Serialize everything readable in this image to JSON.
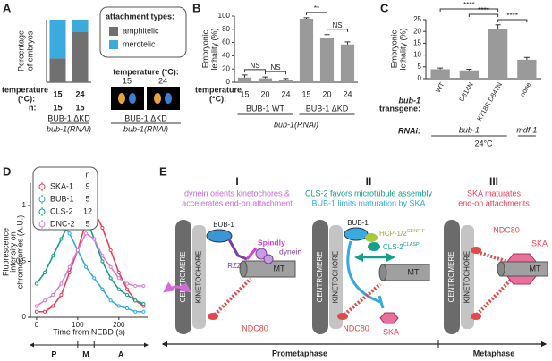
{
  "panel_labels": [
    "A",
    "B",
    "C",
    "D",
    "E"
  ],
  "chart_data": [
    {
      "type": "stacked_bar",
      "y_label": [
        "Percentage",
        "of embryos"
      ],
      "categories": [
        "15",
        "24"
      ],
      "row_labels": [
        "temperature",
        "(°C):",
        "n:"
      ],
      "n": [
        15,
        15
      ],
      "strain": "BUB-1 ΔKD",
      "rnai": "bub-1(RNAi)",
      "ylim": [
        0,
        100
      ],
      "series": [
        {
          "name": "amphitelic",
          "color": "#707070",
          "values": [
            38,
            80
          ]
        },
        {
          "name": "merotelic",
          "color": "#3aaadf",
          "values": [
            62,
            20
          ]
        }
      ],
      "legend_title": "attachment types:",
      "inset": {
        "title": "temperature (°C):",
        "labels": [
          "15",
          "24"
        ],
        "strain": "BUB-1 ΔKD",
        "rnai": "bub-1(RNAi)"
      }
    },
    {
      "type": "bar",
      "y_label": [
        "Embryonic",
        "lethality (%)"
      ],
      "categories": [
        "15",
        "20",
        "24",
        "15",
        "20",
        "24"
      ],
      "row_labels": [
        "temperature",
        "(°C):"
      ],
      "groups": [
        "BUB-1 WT",
        "BUB-1 ΔKD"
      ],
      "rnai": "bub-1(RNAi)",
      "values": [
        7,
        6,
        4,
        96,
        67,
        57
      ],
      "errors": [
        4,
        2,
        1.5,
        1.5,
        5,
        4
      ],
      "color": "#9a9a9a",
      "ylim": [
        0,
        100
      ],
      "yticks": [
        0,
        20,
        40,
        60,
        80,
        100
      ],
      "annotations": [
        "NS",
        "NS",
        "**",
        "NS"
      ]
    },
    {
      "type": "bar",
      "y_label": [
        "Embryonic",
        "lethality (%)"
      ],
      "categories": [
        "WT",
        "D814N",
        "K718R D847N",
        "none"
      ],
      "row_labels": [
        "bub-1",
        "transgene:",
        "RNAi:"
      ],
      "rnai": [
        "bub-1",
        "mdf-1"
      ],
      "condition": "24°C",
      "values": [
        4,
        3.5,
        21,
        8
      ],
      "errors": [
        0.5,
        0.5,
        1.8,
        1
      ],
      "color": "#9a9a9a",
      "ylim": [
        0,
        25
      ],
      "yticks": [
        0,
        5,
        10,
        15,
        20,
        25
      ],
      "annotations": [
        "****",
        "****",
        "****"
      ]
    },
    {
      "type": "line",
      "y_label": [
        "Fluorescence",
        "intensity on",
        "chromosomes (A.U.)"
      ],
      "x_label": "Time from NEBD (s)",
      "legend_header": "n",
      "phases": [
        "P",
        "M",
        "A"
      ],
      "x": [
        0,
        20,
        40,
        60,
        80,
        100,
        120,
        140,
        160,
        180,
        200,
        220,
        240,
        260
      ],
      "xlim": [
        -15,
        270
      ],
      "xticks": [
        0,
        100,
        200
      ],
      "ylim": [
        0,
        1.2
      ],
      "yticks": [
        0,
        0.5,
        1
      ],
      "series": [
        {
          "name": "SKA-1",
          "color": "#e8405a",
          "n": 9,
          "values": [
            0.05,
            0.05,
            0.1,
            0.2,
            0.4,
            0.6,
            0.85,
            0.95,
            0.8,
            0.6,
            0.4,
            0.25,
            0.15,
            0.1
          ]
        },
        {
          "name": "BUB-1",
          "color": "#36a9e1",
          "n": 5,
          "values": [
            0.9,
            1,
            0.95,
            0.85,
            0.75,
            0.6,
            0.45,
            0.35,
            0.25,
            0.15,
            0.1,
            0.08,
            0.05,
            0.05
          ]
        },
        {
          "name": "CLS-2",
          "color": "#15a08a",
          "n": 12,
          "values": [
            0.3,
            0.4,
            0.55,
            0.7,
            0.85,
            0.95,
            0.9,
            0.7,
            0.5,
            0.35,
            0.25,
            0.2,
            0.15,
            0.12
          ]
        },
        {
          "name": "DNC-2",
          "color": "#d77fd6",
          "n": 5,
          "values": [
            0.1,
            0.15,
            0.2,
            0.3,
            0.45,
            0.6,
            0.75,
            0.7,
            0.55,
            0.45,
            0.35,
            0.3,
            0.28,
            0.28
          ]
        }
      ]
    }
  ],
  "diagram": {
    "centromere": "CENTROMERE",
    "kinetochore": "KINETOCHORE",
    "timeline": [
      "Prometaphase",
      "Metaphase"
    ],
    "panels": [
      {
        "numeral": "I",
        "caption": [
          "dynein orients kinetochores &",
          "accelerates end-on attachment"
        ],
        "labels": [
          "BUB-1",
          "RZZ",
          "Spindly",
          "dynein",
          "MT",
          "NDC80"
        ]
      },
      {
        "numeral": "II",
        "caption": [
          "CLS-2 favors microtubule assembly",
          "BUB-1 limits maturation by SKA"
        ],
        "labels": [
          "BUB-1",
          "HCP-1/2",
          "CENP-F",
          "CLS-2",
          "CLASP",
          "MT",
          "NDC80",
          "SKA"
        ]
      },
      {
        "numeral": "III",
        "caption": [
          "SKA maturates",
          "end-on attachments"
        ],
        "labels": [
          "NDC80",
          "SKA",
          "MT"
        ]
      }
    ]
  }
}
